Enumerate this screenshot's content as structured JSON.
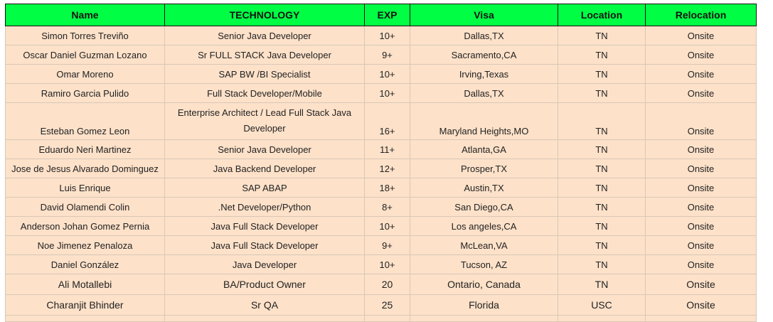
{
  "colors": {
    "header_bg": "#00ff44",
    "row_bg": "#fde1c9"
  },
  "headers": {
    "name": "Name",
    "technology": "TECHNOLOGY",
    "exp": "EXP",
    "visa": "Visa",
    "location": "Location",
    "relocation": "Relocation"
  },
  "rows": [
    {
      "name": "Simon Torres Treviño",
      "technology": "Senior Java Developer",
      "exp": "10+",
      "visa": "Dallas,TX",
      "location": "TN",
      "relocation": "Onsite"
    },
    {
      "name": "Oscar Daniel Guzman Lozano",
      "technology": "Sr FULL STACK Java Developer",
      "exp": "9+",
      "visa": "Sacramento,CA",
      "location": "TN",
      "relocation": "Onsite"
    },
    {
      "name": "Omar Moreno",
      "technology": "SAP BW /BI Specialist",
      "exp": "10+",
      "visa": "Irving,Texas",
      "location": "TN",
      "relocation": "Onsite"
    },
    {
      "name": "Ramiro Garcia Pulido",
      "technology": "Full Stack Developer/Mobile",
      "exp": "10+",
      "visa": "Dallas,TX",
      "location": "TN",
      "relocation": "Onsite"
    },
    {
      "name": "Esteban Gomez Leon",
      "technology": "Enterprise Architect / Lead Full Stack Java Developer",
      "exp": "16+",
      "visa": "Maryland Heights,MO",
      "location": "TN",
      "relocation": "Onsite"
    },
    {
      "name": "Eduardo Neri Martinez",
      "technology": "Senior Java Developer",
      "exp": "11+",
      "visa": "Atlanta,GA",
      "location": "TN",
      "relocation": "Onsite"
    },
    {
      "name": "Jose de Jesus Alvarado Dominguez",
      "technology": "Java Backend Developer",
      "exp": "12+",
      "visa": "Prosper,TX",
      "location": "TN",
      "relocation": "Onsite"
    },
    {
      "name": "Luis Enrique",
      "technology": "SAP ABAP",
      "exp": "18+",
      "visa": "Austin,TX",
      "location": "TN",
      "relocation": "Onsite"
    },
    {
      "name": "David Olamendi Colin",
      "technology": ".Net Developer/Python",
      "exp": "8+",
      "visa": "San Diego,CA",
      "location": "TN",
      "relocation": "Onsite"
    },
    {
      "name": "Anderson Johan Gomez Pernia",
      "technology": "Java Full Stack Developer",
      "exp": "10+",
      "visa": "Los angeles,CA",
      "location": "TN",
      "relocation": "Onsite"
    },
    {
      "name": "Noe Jimenez Penaloza",
      "technology": "Java Full Stack Developer",
      "exp": "9+",
      "visa": "McLean,VA",
      "location": "TN",
      "relocation": "Onsite"
    },
    {
      "name": "Daniel González",
      "technology": "Java Developer",
      "exp": "10+",
      "visa": "Tucson, AZ",
      "location": "TN",
      "relocation": "Onsite"
    },
    {
      "name": "Ali Motallebi",
      "technology": "BA/Product Owner",
      "exp": "20",
      "visa": "Ontario, Canada",
      "location": "TN",
      "relocation": "Onsite"
    },
    {
      "name": "Charanjit Bhinder",
      "technology": "Sr QA",
      "exp": "25",
      "visa": "Florida",
      "location": "USC",
      "relocation": "Onsite"
    }
  ]
}
